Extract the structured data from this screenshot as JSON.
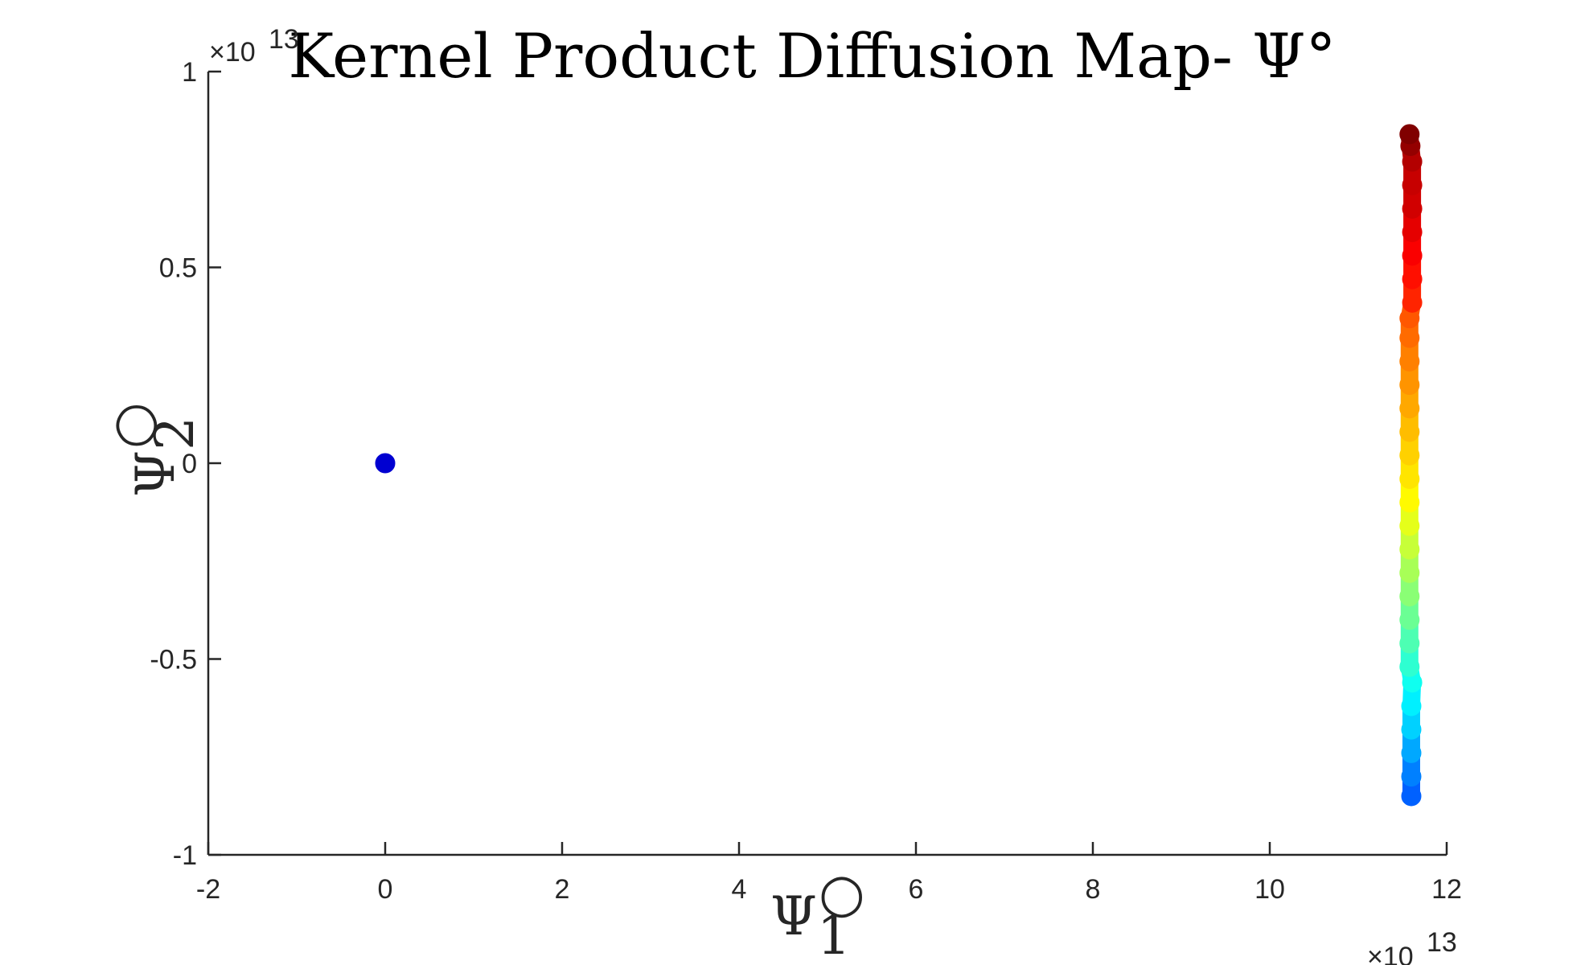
{
  "chart_data": {
    "type": "scatter",
    "title": "Kernel Product Diffusion Map- Ψ°",
    "xlabel": {
      "base": "Ψ",
      "sup": "○",
      "sub": "1"
    },
    "ylabel": {
      "base": "Ψ",
      "sup": "○",
      "sub": "2"
    },
    "x_exponent": {
      "prefix": "×10",
      "power": "13"
    },
    "y_exponent": {
      "prefix": "×10",
      "power": "13"
    },
    "xlim": [
      -2,
      12
    ],
    "ylim": [
      -1,
      1
    ],
    "xticks": [
      -2,
      0,
      2,
      4,
      6,
      8,
      10,
      12
    ],
    "yticks": [
      -1,
      -0.5,
      0,
      0.5,
      1
    ],
    "xtick_labels": [
      "-2",
      "0",
      "2",
      "4",
      "6",
      "8",
      "10",
      "12"
    ],
    "ytick_labels": [
      "-1",
      "-0.5",
      "0",
      "0.5",
      "1"
    ],
    "grid": false,
    "colormap": "jet",
    "points": [
      {
        "x": 0.0,
        "y": 0.0,
        "c": 0.08
      },
      {
        "x": 11.6,
        "y": -0.85,
        "c": 0.22
      },
      {
        "x": 11.6,
        "y": -0.8,
        "c": 0.25
      },
      {
        "x": 11.6,
        "y": -0.74,
        "c": 0.29
      },
      {
        "x": 11.6,
        "y": -0.68,
        "c": 0.33
      },
      {
        "x": 11.6,
        "y": -0.62,
        "c": 0.36
      },
      {
        "x": 11.61,
        "y": -0.56,
        "c": 0.39
      },
      {
        "x": 11.58,
        "y": -0.52,
        "c": 0.42
      },
      {
        "x": 11.58,
        "y": -0.46,
        "c": 0.45
      },
      {
        "x": 11.58,
        "y": -0.4,
        "c": 0.48
      },
      {
        "x": 11.58,
        "y": -0.34,
        "c": 0.51
      },
      {
        "x": 11.58,
        "y": -0.28,
        "c": 0.54
      },
      {
        "x": 11.58,
        "y": -0.22,
        "c": 0.57
      },
      {
        "x": 11.58,
        "y": -0.16,
        "c": 0.6
      },
      {
        "x": 11.58,
        "y": -0.1,
        "c": 0.63
      },
      {
        "x": 11.58,
        "y": -0.04,
        "c": 0.65
      },
      {
        "x": 11.58,
        "y": 0.02,
        "c": 0.67
      },
      {
        "x": 11.58,
        "y": 0.08,
        "c": 0.69
      },
      {
        "x": 11.58,
        "y": 0.14,
        "c": 0.71
      },
      {
        "x": 11.58,
        "y": 0.2,
        "c": 0.73
      },
      {
        "x": 11.58,
        "y": 0.26,
        "c": 0.75
      },
      {
        "x": 11.58,
        "y": 0.32,
        "c": 0.77
      },
      {
        "x": 11.58,
        "y": 0.37,
        "c": 0.79
      },
      {
        "x": 11.61,
        "y": 0.41,
        "c": 0.84
      },
      {
        "x": 11.61,
        "y": 0.47,
        "c": 0.86
      },
      {
        "x": 11.61,
        "y": 0.53,
        "c": 0.88
      },
      {
        "x": 11.61,
        "y": 0.59,
        "c": 0.9
      },
      {
        "x": 11.61,
        "y": 0.65,
        "c": 0.92
      },
      {
        "x": 11.61,
        "y": 0.71,
        "c": 0.93
      },
      {
        "x": 11.61,
        "y": 0.77,
        "c": 0.95
      },
      {
        "x": 11.59,
        "y": 0.81,
        "c": 0.98
      },
      {
        "x": 11.58,
        "y": 0.84,
        "c": 1.0
      }
    ]
  }
}
